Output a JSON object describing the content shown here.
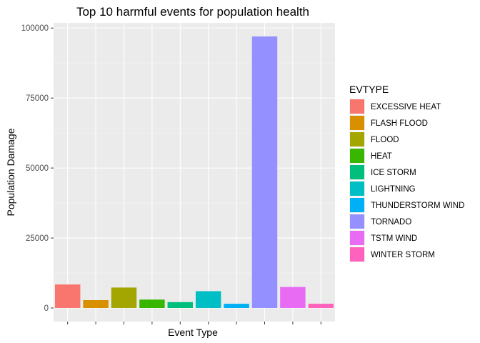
{
  "chart_data": {
    "type": "bar",
    "title": "Top 10 harmful events for population health",
    "xlabel": "Event Type",
    "ylabel": "Population Damage",
    "ylim": [
      0,
      100000
    ],
    "yticks": [
      0,
      25000,
      50000,
      75000,
      100000
    ],
    "ytick_labels": [
      "0",
      "25000",
      "50000",
      "75000",
      "100000"
    ],
    "grid": true,
    "legend_position": "right",
    "legend_title": "EVTYPE",
    "categories": [
      "EXCESSIVE HEAT",
      "FLASH FLOOD",
      "FLOOD",
      "HEAT",
      "ICE STORM",
      "LIGHTNING",
      "THUNDERSTORM WIND",
      "TORNADO",
      "TSTM WIND",
      "WINTER STORM"
    ],
    "values": [
      8400,
      2800,
      7300,
      3000,
      2100,
      6000,
      1500,
      97000,
      7500,
      1500
    ],
    "colors": [
      "#F8766D",
      "#D89000",
      "#A3A500",
      "#39B600",
      "#00BF7D",
      "#00BFC4",
      "#00B0F6",
      "#9590FF",
      "#E76BF3",
      "#FF62BC"
    ]
  }
}
